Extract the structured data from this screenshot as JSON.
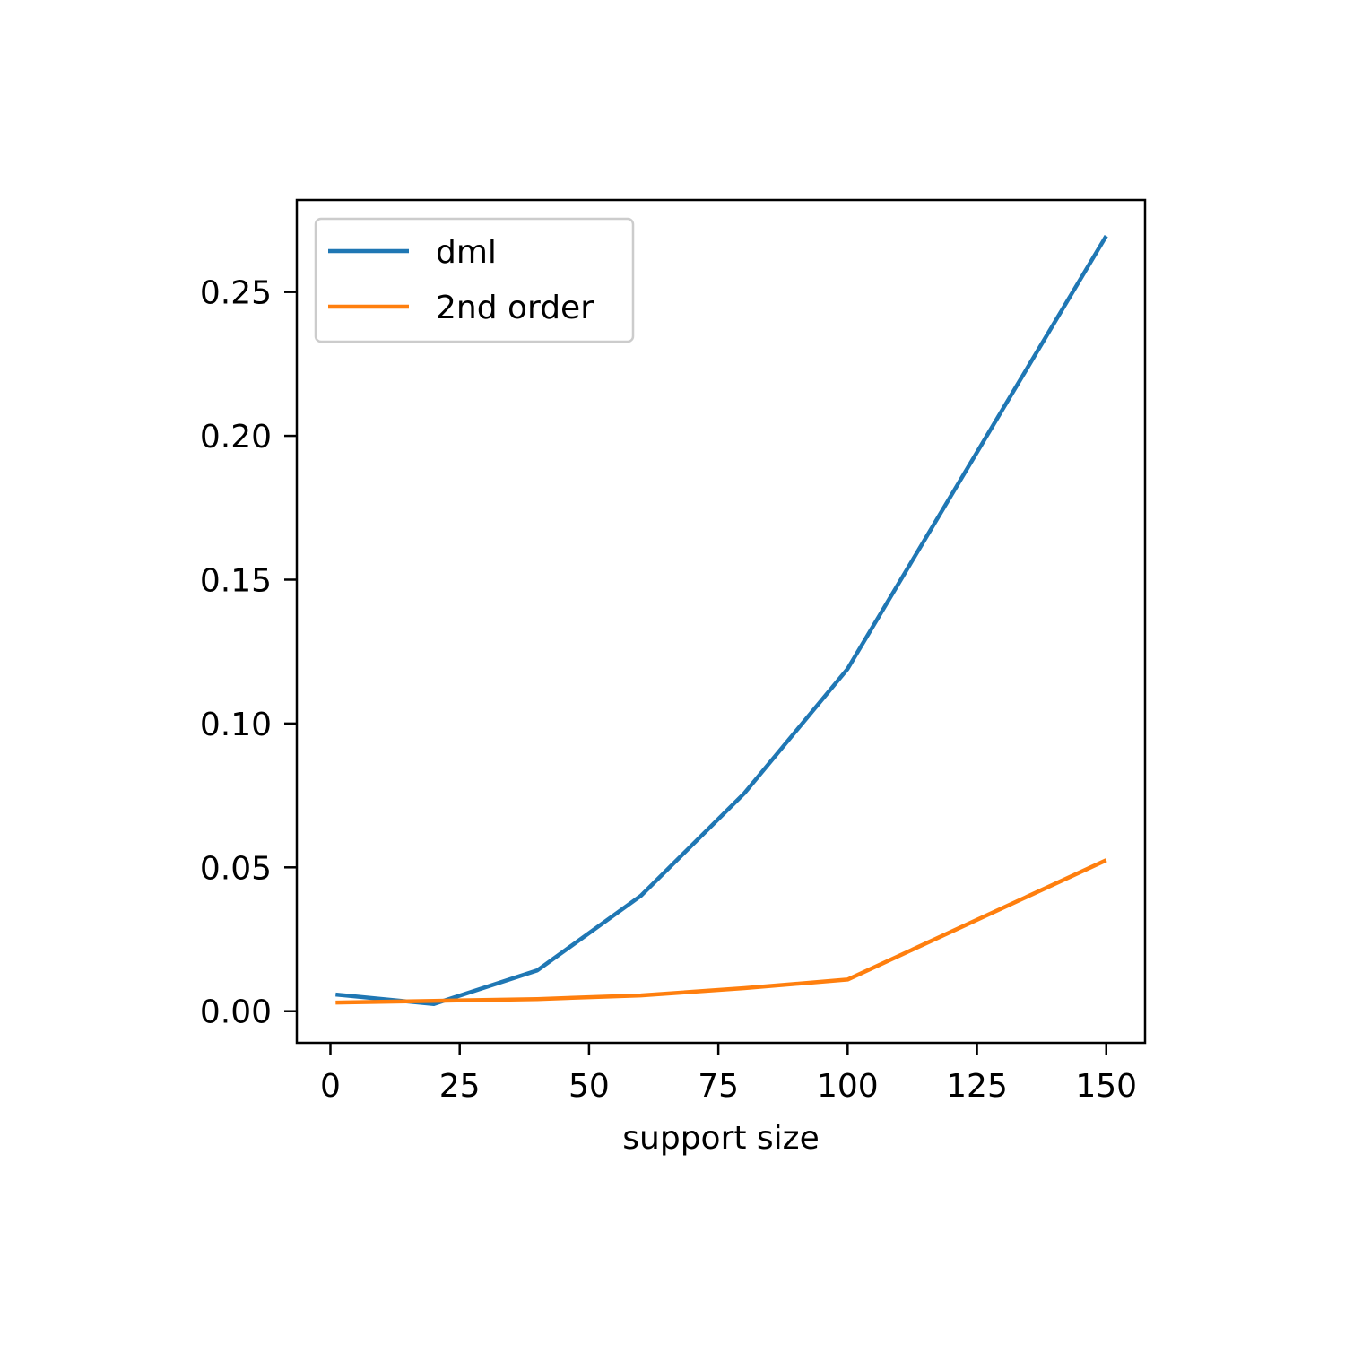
{
  "chart_data": {
    "type": "line",
    "title": "",
    "xlabel": "support size",
    "ylabel": "",
    "xlim": [
      -6.5,
      157.5
    ],
    "ylim": [
      -0.011,
      0.282
    ],
    "xticks": [
      0,
      25,
      50,
      75,
      100,
      125,
      150
    ],
    "xtick_labels": [
      "0",
      "25",
      "50",
      "75",
      "100",
      "125",
      "150"
    ],
    "yticks": [
      0.0,
      0.05,
      0.1,
      0.15,
      0.2,
      0.25
    ],
    "ytick_labels": [
      "0.00",
      "0.05",
      "0.10",
      "0.15",
      "0.20",
      "0.25"
    ],
    "grid": false,
    "legend_position": "upper-left",
    "series": [
      {
        "name": "dml",
        "color": "#1f77b4",
        "x": [
          1,
          20,
          40,
          60,
          80,
          100,
          150
        ],
        "y": [
          0.0058,
          0.0025,
          0.0142,
          0.0401,
          0.0757,
          0.119,
          0.2695
        ]
      },
      {
        "name": "2nd order",
        "color": "#ff7f0e",
        "x": [
          1,
          20,
          40,
          60,
          80,
          100,
          150
        ],
        "y": [
          0.003,
          0.0036,
          0.0042,
          0.0055,
          0.008,
          0.011,
          0.0525
        ]
      }
    ]
  }
}
